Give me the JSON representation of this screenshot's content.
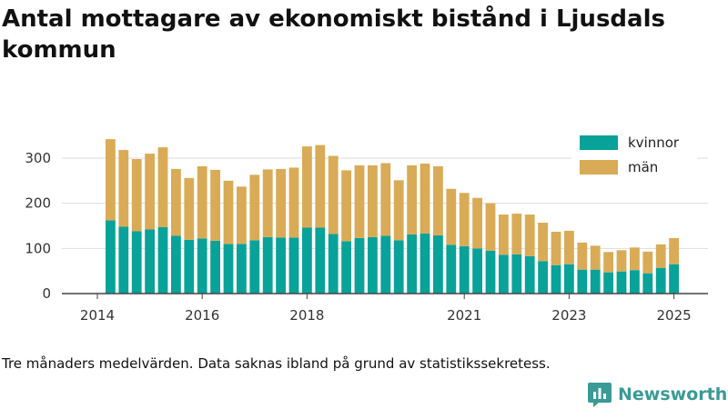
{
  "title": "Antal mottagare av ekonomiskt bistånd i Ljusdals kommun",
  "footnote": "Tre månaders medelvärden. Data saknas ibland på grund av statistikssekretess.",
  "brand": "Newsworthy",
  "colors": {
    "kvinnor": "#08a299",
    "man": "#d9ab56",
    "grid": "#dddddd",
    "axis": "#444444"
  },
  "chart_data": {
    "type": "bar",
    "stacked": true,
    "xlabel": "",
    "ylabel": "",
    "ylim": [
      0,
      360
    ],
    "y_ticks": [
      0,
      100,
      200,
      300
    ],
    "x_tick_labels": [
      "2014",
      "2016",
      "2018",
      "2021",
      "2023",
      "2025"
    ],
    "legend_position": "top-right",
    "grid": true,
    "series": [
      {
        "name": "kvinnor",
        "values": [
          162,
          148,
          138,
          142,
          147,
          128,
          119,
          122,
          117,
          110,
          110,
          118,
          125,
          124,
          124,
          146,
          146,
          132,
          116,
          123,
          125,
          128,
          118,
          131,
          133,
          129,
          108,
          105,
          100,
          95,
          86,
          87,
          83,
          72,
          63,
          65,
          53,
          53,
          47,
          49,
          52,
          45,
          57,
          65
        ]
      },
      {
        "name": "män",
        "values": [
          180,
          170,
          160,
          168,
          177,
          148,
          137,
          160,
          157,
          140,
          127,
          145,
          150,
          152,
          155,
          180,
          183,
          173,
          157,
          161,
          159,
          161,
          133,
          153,
          155,
          153,
          124,
          118,
          112,
          105,
          89,
          90,
          92,
          85,
          74,
          74,
          60,
          53,
          45,
          47,
          50,
          48,
          52,
          58
        ]
      }
    ]
  }
}
